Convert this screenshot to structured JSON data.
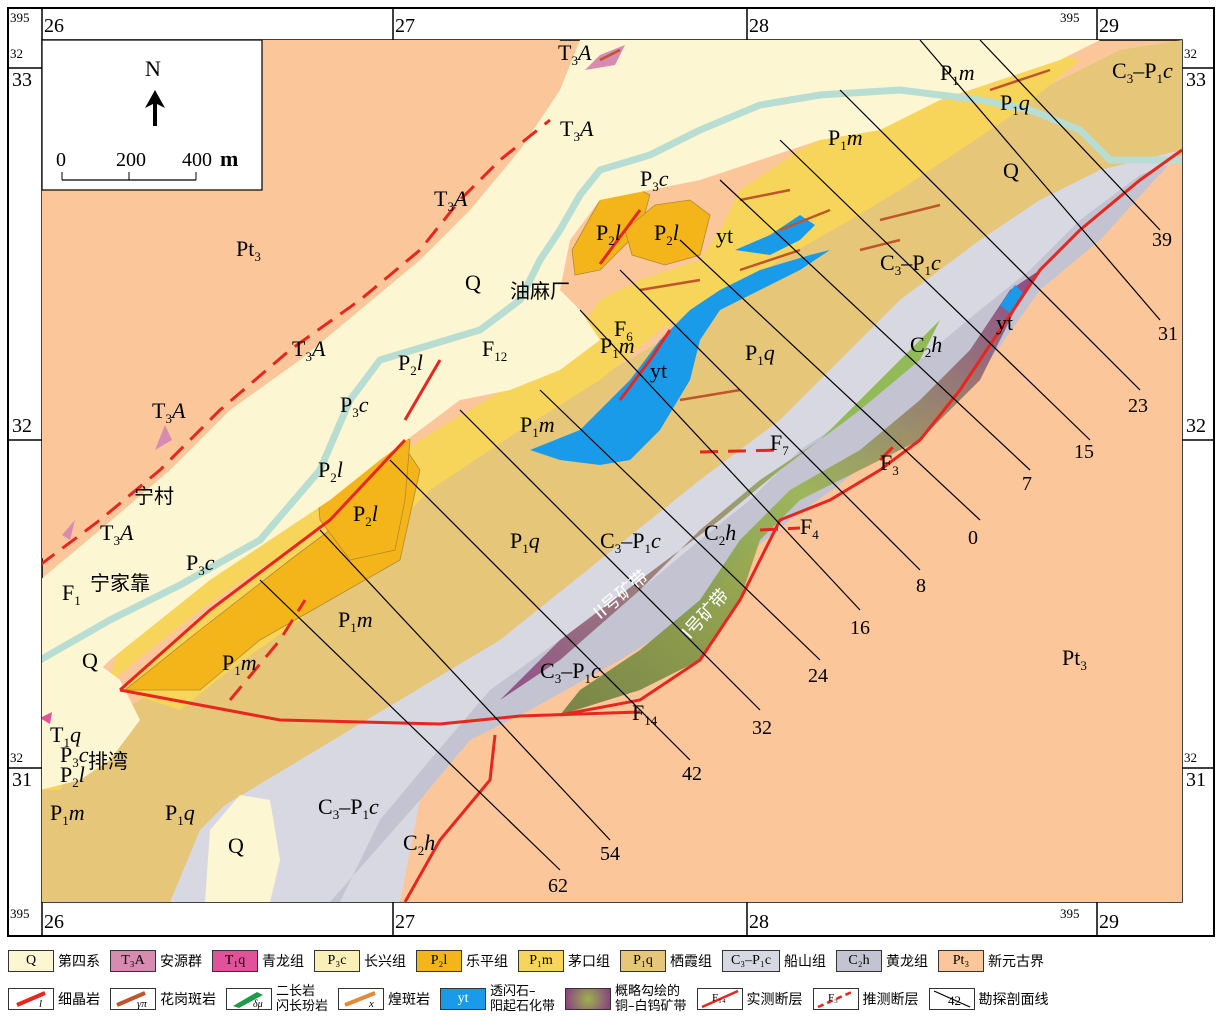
{
  "map": {
    "grid_top": [
      "26",
      "27",
      "28",
      "29"
    ],
    "grid_top_prefix": "395",
    "grid_side": [
      "33",
      "32",
      "31"
    ],
    "grid_side_prefix": "32",
    "north": "N",
    "scale": {
      "t0": "0",
      "t1": "200",
      "t2": "400",
      "unit": "m"
    },
    "units": {
      "Pt3": "Pt",
      "Q": "Q",
      "P1m": "P",
      "P1q": "P",
      "P2l": "P",
      "P3c": "P",
      "C3P1c": "C",
      "C2h": "C",
      "T3A": "T",
      "T1q": "T",
      "yt": "yt"
    },
    "places": {
      "youmachang": "油麻厂",
      "ningcun": "宁村",
      "ningjiakao": "宁家靠",
      "paiwan": "排湾"
    },
    "faults": {
      "F1": "F",
      "F3": "F",
      "F4": "F",
      "F6": "F",
      "F7": "F",
      "F12": "F",
      "F14": "F"
    },
    "belts": {
      "belt2": "II号矿带",
      "belt1": "I号矿带"
    },
    "sections": [
      "39",
      "31",
      "23",
      "15",
      "7",
      "0",
      "8",
      "16",
      "24",
      "32",
      "42",
      "54",
      "62"
    ]
  },
  "legend": {
    "row1": [
      {
        "sym": "Q",
        "label": "第四系",
        "color": "#fdf6d2"
      },
      {
        "sym": "T₃A",
        "label": "安源群",
        "color": "#d88bb0"
      },
      {
        "sym": "T₁q",
        "label": "青龙组",
        "color": "#e0529a"
      },
      {
        "sym": "P₃c",
        "label": "长兴组",
        "color": "#f8f0b6"
      },
      {
        "sym": "P₂l",
        "label": "乐平组",
        "color": "#f4b51a"
      },
      {
        "sym": "P₁m",
        "label": "茅口组",
        "color": "#f7d55a"
      },
      {
        "sym": "P₁q",
        "label": "栖霞组",
        "color": "#e6c679"
      },
      {
        "sym": "C₃–P₁c",
        "label": "船山组",
        "color": "#d8d8e2"
      },
      {
        "sym": "C₂h",
        "label": "黄龙组",
        "color": "#c3c3d2"
      },
      {
        "sym": "Pt₃",
        "label": "新元古界",
        "color": "#fbc79a"
      }
    ],
    "row2": [
      {
        "sym": "l",
        "label": "细晶岩",
        "icon": "aplite"
      },
      {
        "sym": "γπ",
        "label": "花岗斑岩",
        "icon": "granite"
      },
      {
        "sym": "δμ",
        "label": "二长岩\n闪长玢岩",
        "icon": "diorite"
      },
      {
        "sym": "x",
        "label": "煌斑岩",
        "icon": "lamp"
      },
      {
        "sym": "yt",
        "label": "透闪石–\n阳起石化带",
        "icon": "yt"
      },
      {
        "sym": "",
        "label": "概略勾绘的\n铜–白钨矿带",
        "icon": "ore"
      },
      {
        "sym": "F₁₄",
        "label": "实测断层",
        "icon": "fault"
      },
      {
        "sym": "F₃",
        "label": "推测断层",
        "icon": "fault2"
      },
      {
        "sym": "42",
        "label": "勘探剖面线",
        "icon": "section"
      }
    ],
    "colors": {
      "Pt3": "#fbc79a",
      "Q": "#fdf6d2",
      "P1m": "#f7d55a",
      "P1q": "#e6c679",
      "P2l": "#f4b51a",
      "P3c": "#f8f0b6",
      "C3P1c": "#d8d8e2",
      "C2h": "#c3c3d2",
      "T3A": "#d88bb0",
      "T1q": "#e0529a",
      "yt": "#1a9bea",
      "fault": "#e8261d",
      "river": "#b8ddd3"
    }
  }
}
